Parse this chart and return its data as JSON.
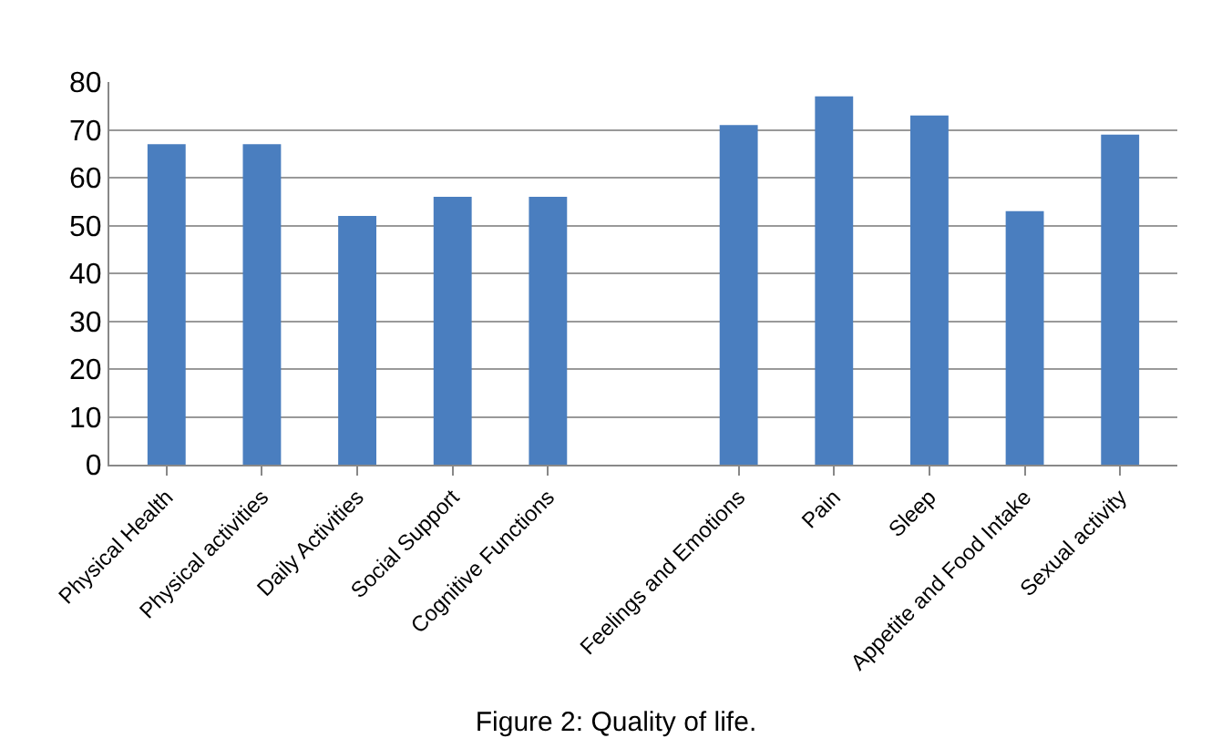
{
  "chart_data": {
    "type": "bar",
    "title": "Figure 2: Quality of life.",
    "categories": [
      "Physical Health",
      "Physical activities",
      "Daily Activities",
      "Social Support",
      "Cognitive Functions",
      null,
      "Feelings and Emotions",
      "Pain",
      "Sleep",
      "Appetite and Food Intake",
      "Sexual activity"
    ],
    "values": [
      67,
      67,
      52,
      56,
      56,
      null,
      71,
      77,
      73,
      53,
      69
    ],
    "color": "#4a7ebf",
    "ylim": [
      0,
      80
    ],
    "yticks": [
      0,
      10,
      20,
      30,
      40,
      50,
      60,
      70,
      80
    ],
    "grid": "y",
    "legend": false
  }
}
